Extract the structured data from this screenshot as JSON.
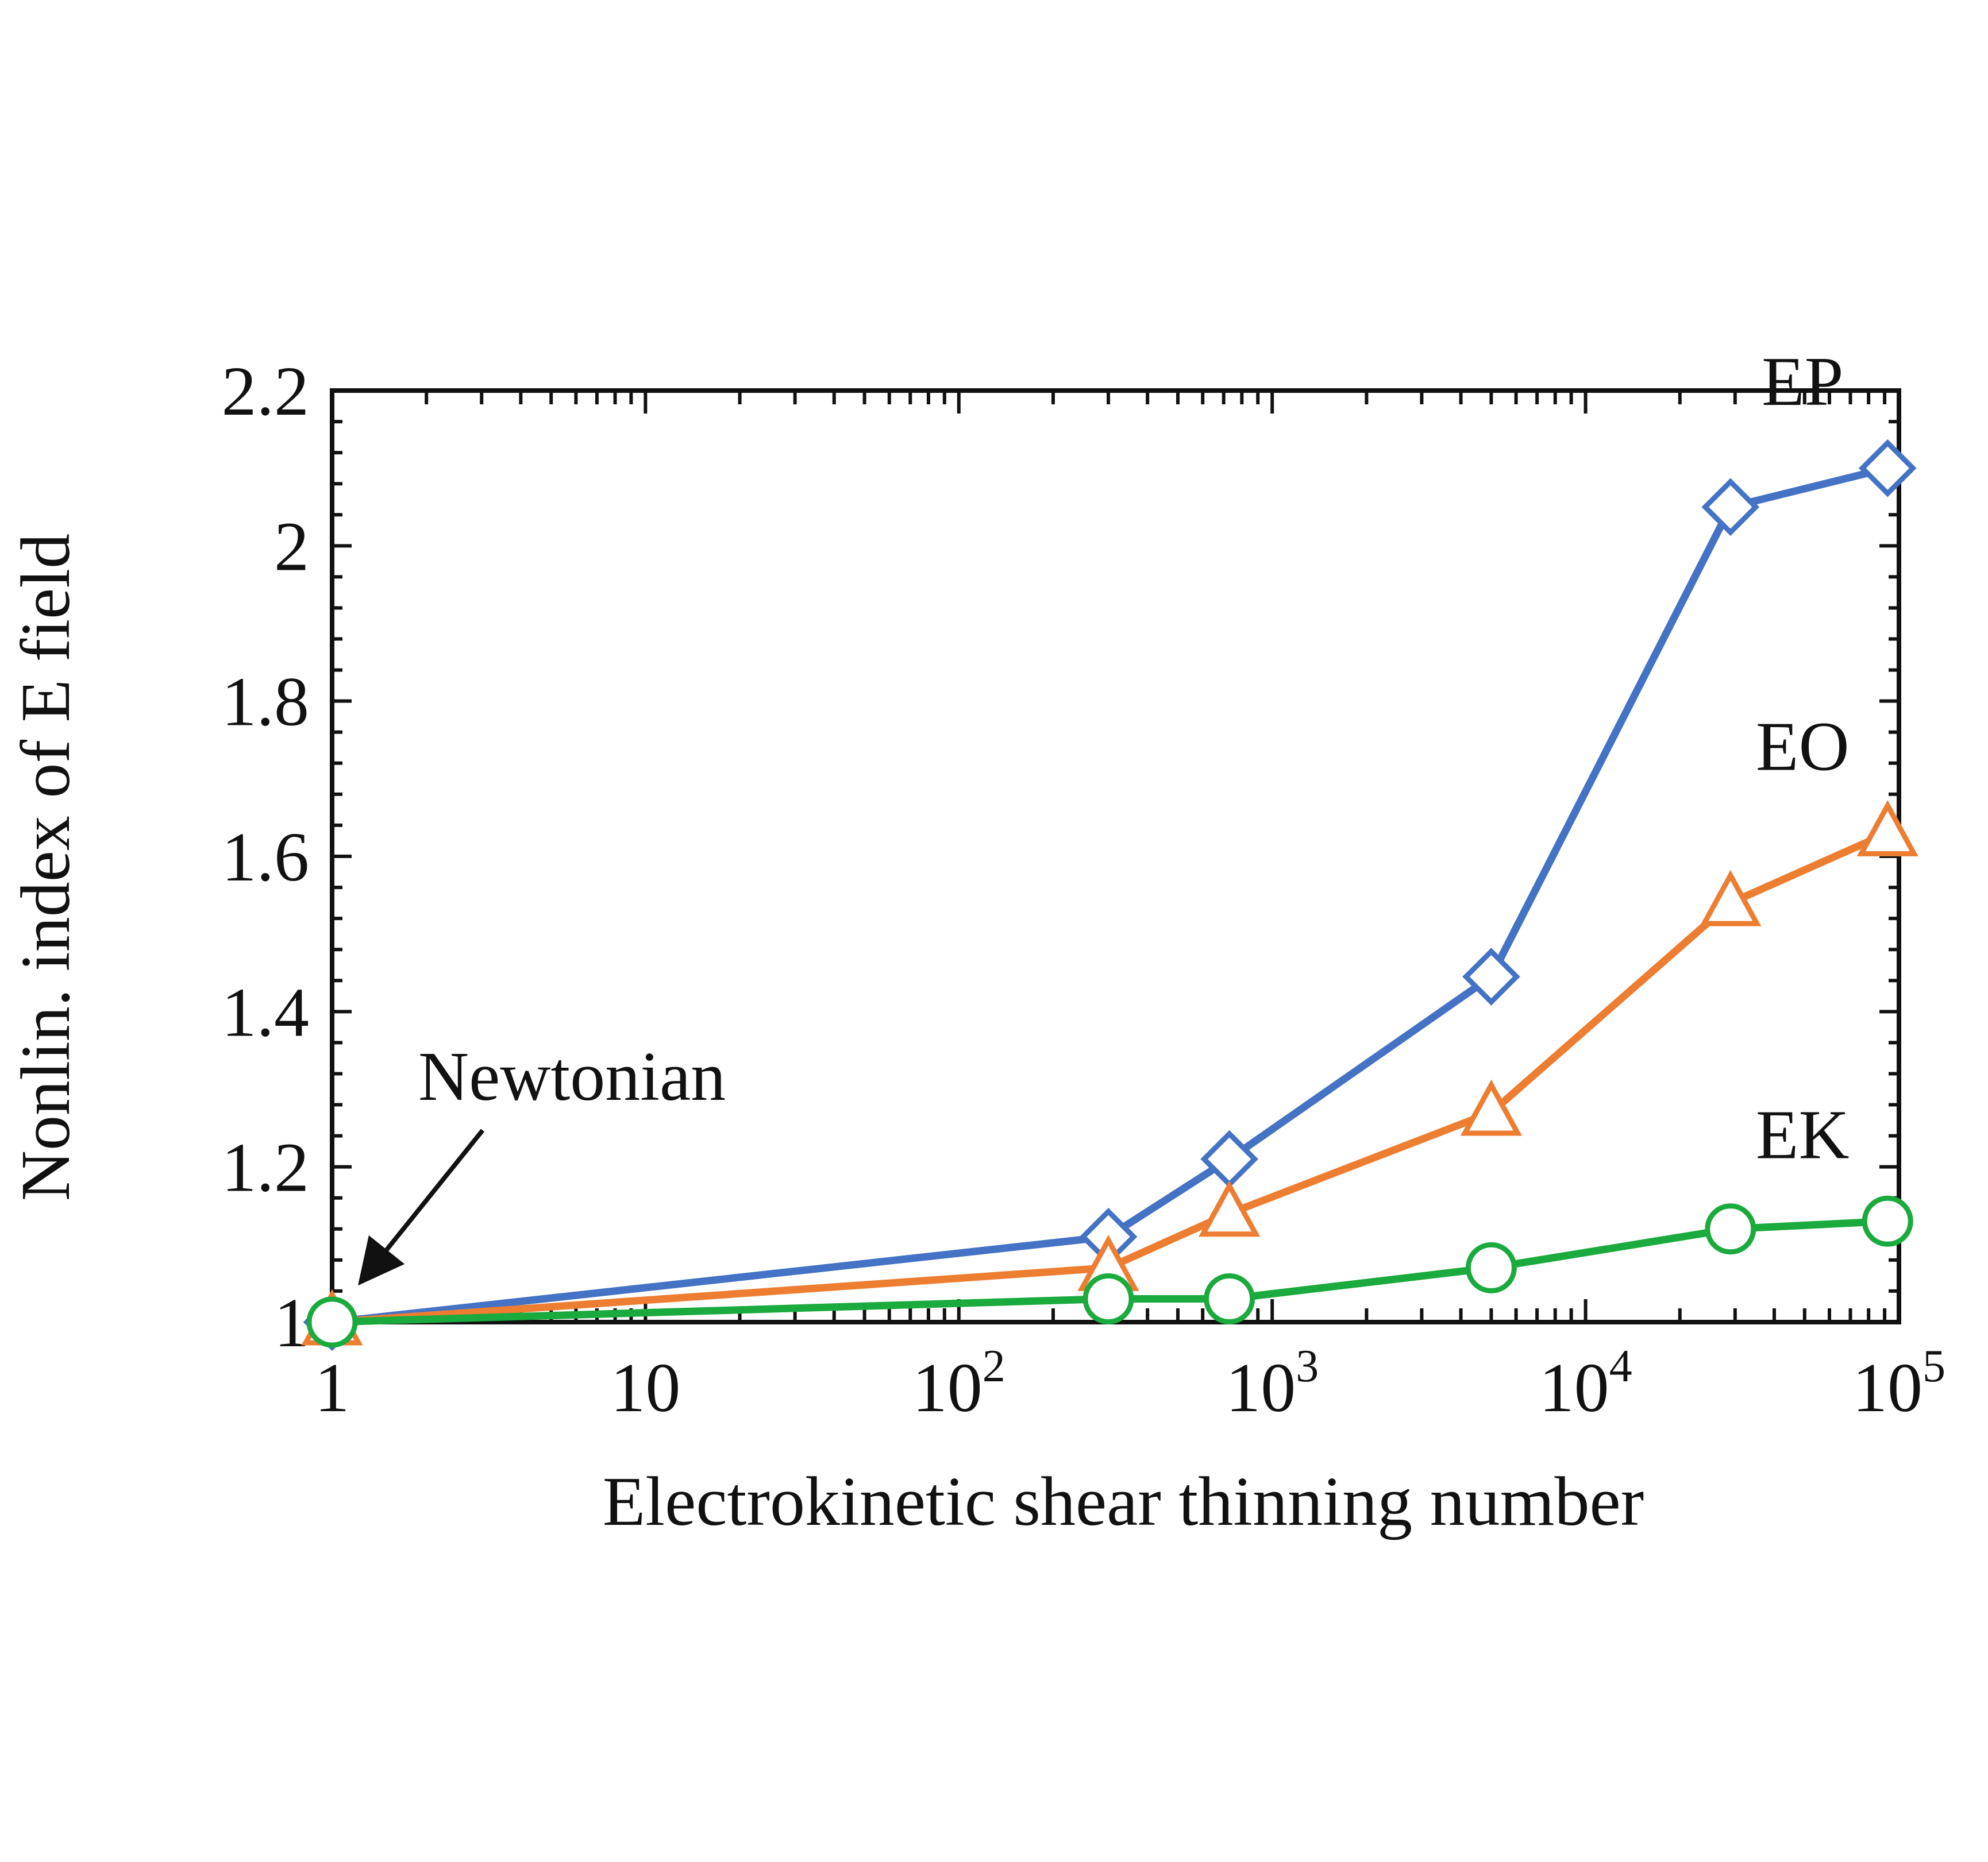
{
  "chart_data": {
    "type": "line",
    "xscale": "log",
    "xlabel": "Electrokinetic shear thinning number",
    "ylabel": "Nonlin. index of E field",
    "xlim": [
      1,
      100000
    ],
    "ylim": [
      1,
      2.2
    ],
    "x_ticks": [
      {
        "value": 1,
        "base": "1",
        "exp": ""
      },
      {
        "value": 10,
        "base": "10",
        "exp": ""
      },
      {
        "value": 100,
        "base": "10",
        "exp": "2"
      },
      {
        "value": 1000,
        "base": "10",
        "exp": "3"
      },
      {
        "value": 10000,
        "base": "10",
        "exp": "4"
      },
      {
        "value": 100000,
        "base": "10",
        "exp": "5"
      }
    ],
    "y_ticks": [
      {
        "value": 1,
        "label": "1"
      },
      {
        "value": 1.2,
        "label": "1.2"
      },
      {
        "value": 1.4,
        "label": "1.4"
      },
      {
        "value": 1.6,
        "label": "1.6"
      },
      {
        "value": 1.8,
        "label": "1.8"
      },
      {
        "value": 2.0,
        "label": "2"
      },
      {
        "value": 2.2,
        "label": "2.2"
      }
    ],
    "series": [
      {
        "name": "EP",
        "color": "#4472C4",
        "marker": "diamond",
        "x": [
          1,
          300,
          730,
          5000,
          29000,
          92000
        ],
        "y": [
          1.0,
          1.11,
          1.21,
          1.445,
          2.05,
          2.1
        ]
      },
      {
        "name": "EO",
        "color": "#ED7D31",
        "marker": "triangle",
        "x": [
          1,
          300,
          730,
          5000,
          29000,
          92000
        ],
        "y": [
          1.0,
          1.07,
          1.14,
          1.27,
          1.54,
          1.63
        ]
      },
      {
        "name": "EK",
        "color": "#1AAA3D",
        "marker": "circle",
        "x": [
          1,
          300,
          730,
          5000,
          29000,
          92000
        ],
        "y": [
          1.0,
          1.03,
          1.03,
          1.07,
          1.12,
          1.13
        ]
      }
    ],
    "annotations": [
      {
        "text": "Newtonian",
        "points_to": {
          "x": 1,
          "y": 1.0
        }
      }
    ],
    "grid": false,
    "legend": "inline labels at right end of series"
  }
}
